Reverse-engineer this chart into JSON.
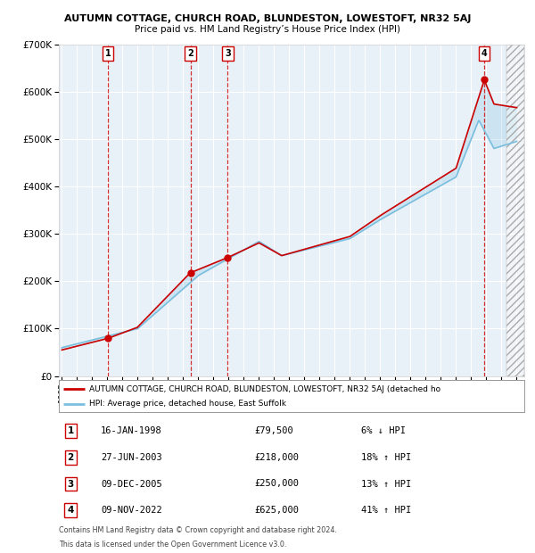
{
  "title1": "AUTUMN COTTAGE, CHURCH ROAD, BLUNDESTON, LOWESTOFT, NR32 5AJ",
  "title2": "Price paid vs. HM Land Registry’s House Price Index (HPI)",
  "sales": [
    {
      "num": 1,
      "date": "16-JAN-1998",
      "price": 79500,
      "pct": "6%",
      "dir": "↓",
      "year": 1998.04
    },
    {
      "num": 2,
      "date": "27-JUN-2003",
      "price": 218000,
      "pct": "18%",
      "dir": "↑",
      "year": 2003.49
    },
    {
      "num": 3,
      "date": "09-DEC-2005",
      "price": 250000,
      "pct": "13%",
      "dir": "↑",
      "year": 2005.94
    },
    {
      "num": 4,
      "date": "09-NOV-2022",
      "price": 625000,
      "pct": "41%",
      "dir": "↑",
      "year": 2022.86
    }
  ],
  "legend_line1": "AUTUMN COTTAGE, CHURCH ROAD, BLUNDESTON, LOWESTOFT, NR32 5AJ (detached ho",
  "legend_line2": "HPI: Average price, detached house, East Suffolk",
  "footnote1": "Contains HM Land Registry data © Crown copyright and database right 2024.",
  "footnote2": "This data is licensed under the Open Government Licence v3.0.",
  "ylim": [
    0,
    700000
  ],
  "yticks": [
    0,
    100000,
    200000,
    300000,
    400000,
    500000,
    600000,
    700000
  ],
  "xlim_min": 1994.8,
  "xlim_max": 2025.5,
  "hpi_color": "#7bbfde",
  "price_color": "#cc0000",
  "plot_bg": "#e8f0f8",
  "grid_color": "#ffffff",
  "hatch_color": "#c8d8e8"
}
